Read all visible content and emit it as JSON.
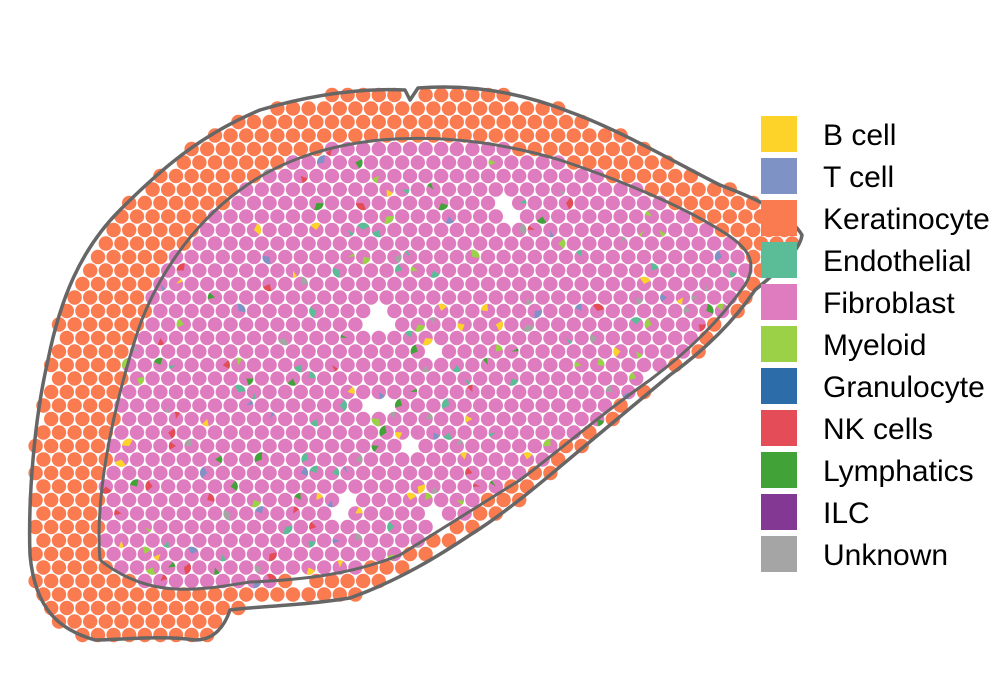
{
  "chart_data": {
    "type": "scatter",
    "title": "",
    "xlabel": "",
    "ylabel": "",
    "grid": false,
    "legend_placement": "right",
    "marker": "pie-chart spots of cell-type proportions on a spatial tissue section",
    "series": [
      {
        "name": "B cell",
        "color": "#FDD32A"
      },
      {
        "name": "T cell",
        "color": "#7F92C5"
      },
      {
        "name": "Keratinocyte",
        "color": "#F97B4F"
      },
      {
        "name": "Endothelial",
        "color": "#5BBD98"
      },
      {
        "name": "Fibroblast",
        "color": "#DF7BBF"
      },
      {
        "name": "Myeloid",
        "color": "#9AD146"
      },
      {
        "name": "Granulocyte",
        "color": "#2C6CA8"
      },
      {
        "name": "NK cells",
        "color": "#E44D58"
      },
      {
        "name": "Lymphatics",
        "color": "#41A337"
      },
      {
        "name": "ILC",
        "color": "#833993"
      },
      {
        "name": "Unknown",
        "color": "#A5A5A5"
      }
    ]
  },
  "outline_color": "#666666"
}
